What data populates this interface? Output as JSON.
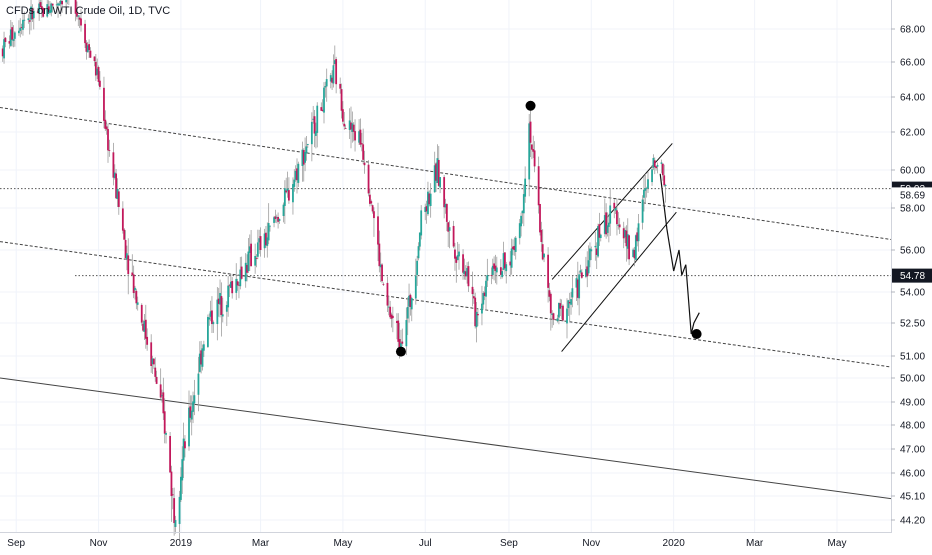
{
  "chart_data": {
    "type": "candlestick",
    "title": "CFDs on WTI Crude Oil, 1D, TVC",
    "x_ticks": [
      "Sep",
      "Nov",
      "2019",
      "Mar",
      "May",
      "Jul",
      "Sep",
      "Nov",
      "2020",
      "Mar",
      "May"
    ],
    "x_tick_dates": [
      "2018-09-01",
      "2018-11-01",
      "2019-01-01",
      "2019-03-01",
      "2019-05-01",
      "2019-07-01",
      "2019-09-01",
      "2019-11-01",
      "2020-01-01",
      "2020-03-01",
      "2020-05-01"
    ],
    "y_ticks": [
      "68.00",
      "66.00",
      "64.00",
      "62.00",
      "60.00",
      "58.00",
      "56.00",
      "54.00",
      "52.50",
      "51.00",
      "50.00",
      "49.00",
      "48.00",
      "47.00",
      "46.00",
      "45.10",
      "44.20"
    ],
    "y_tick_values": [
      68.0,
      66.0,
      64.0,
      62.0,
      60.0,
      58.0,
      56.0,
      54.0,
      52.5,
      51.0,
      50.0,
      49.0,
      48.0,
      47.0,
      46.0,
      45.1,
      44.2
    ],
    "price_labels": [
      {
        "text": "59.02",
        "value": 59.02,
        "style": "dark"
      },
      {
        "text": "58.69",
        "value": 58.69,
        "style": "light"
      },
      {
        "text": "54.78",
        "value": 54.78,
        "style": "dark"
      }
    ],
    "horizontal_lines": [
      59.02,
      54.78
    ],
    "x_range": [
      "2018-08-20",
      "2020-06-10"
    ],
    "colors": {
      "up": "#26a69a",
      "down": "#c2185b",
      "wick": "#9e9e9e",
      "annotation": "#000000"
    },
    "price_path": [
      [
        "2018-08-22",
        66.8
      ],
      [
        "2018-09-05",
        68.6
      ],
      [
        "2018-09-20",
        69.0
      ],
      [
        "2018-10-03",
        69.8
      ],
      [
        "2018-10-12",
        70.5
      ],
      [
        "2018-10-22",
        67.5
      ],
      [
        "2018-11-01",
        65.0
      ],
      [
        "2018-11-10",
        60.5
      ],
      [
        "2018-11-20",
        56.5
      ],
      [
        "2018-11-30",
        53.5
      ],
      [
        "2018-12-10",
        51.0
      ],
      [
        "2018-12-20",
        48.0
      ],
      [
        "2018-12-27",
        44.5
      ],
      [
        "2019-01-05",
        47.5
      ],
      [
        "2019-01-20",
        52.5
      ],
      [
        "2019-02-05",
        54.0
      ],
      [
        "2019-02-20",
        55.5
      ],
      [
        "2019-03-05",
        56.5
      ],
      [
        "2019-03-20",
        58.5
      ],
      [
        "2019-04-05",
        61.5
      ],
      [
        "2019-04-15",
        63.5
      ],
      [
        "2019-04-25",
        65.5
      ],
      [
        "2019-05-03",
        62.5
      ],
      [
        "2019-05-15",
        61.5
      ],
      [
        "2019-05-22",
        58.5
      ],
      [
        "2019-06-01",
        53.5
      ],
      [
        "2019-06-12",
        51.8
      ],
      [
        "2019-06-20",
        53.5
      ],
      [
        "2019-06-28",
        57.5
      ],
      [
        "2019-07-10",
        60.0
      ],
      [
        "2019-07-20",
        56.5
      ],
      [
        "2019-08-01",
        55.0
      ],
      [
        "2019-08-07",
        52.8
      ],
      [
        "2019-08-20",
        55.5
      ],
      [
        "2019-08-30",
        55.0
      ],
      [
        "2019-09-10",
        57.5
      ],
      [
        "2019-09-16",
        62.5
      ],
      [
        "2019-09-25",
        56.5
      ],
      [
        "2019-10-03",
        52.5
      ],
      [
        "2019-10-10",
        53.0
      ],
      [
        "2019-10-20",
        54.0
      ],
      [
        "2019-10-30",
        55.5
      ],
      [
        "2019-11-08",
        57.0
      ],
      [
        "2019-11-20",
        57.8
      ],
      [
        "2019-12-01",
        55.5
      ],
      [
        "2019-12-10",
        58.5
      ],
      [
        "2019-12-19",
        60.8
      ],
      [
        "2019-12-27",
        59.2
      ]
    ],
    "annotations": {
      "trendlines": [
        {
          "name": "upper-descending-trendline",
          "style": "dashed",
          "points": [
            [
              "2018-08-20",
              63.4
            ],
            [
              "2020-06-10",
              56.5
            ]
          ]
        },
        {
          "name": "middle-descending-trendline",
          "style": "dashed",
          "points": [
            [
              "2018-08-20",
              56.4
            ],
            [
              "2020-06-10",
              50.5
            ]
          ]
        },
        {
          "name": "lower-descending-trendline",
          "style": "solid",
          "points": [
            [
              "2018-08-20",
              50.0
            ],
            [
              "2020-06-10",
              45.0
            ]
          ]
        },
        {
          "name": "channel-upper-line",
          "style": "solid",
          "points": [
            [
              "2019-10-03",
              54.6
            ],
            [
              "2019-12-31",
              61.4
            ]
          ]
        },
        {
          "name": "channel-lower-line",
          "style": "solid",
          "points": [
            [
              "2019-10-10",
              51.2
            ],
            [
              "2020-01-03",
              57.8
            ]
          ]
        }
      ],
      "projection_path": [
        [
          "2019-12-22",
          59.8
        ],
        [
          "2019-12-27",
          57.0
        ],
        [
          "2020-01-01",
          55.0
        ],
        [
          "2020-01-05",
          56.0
        ],
        [
          "2020-01-07",
          54.8
        ],
        [
          "2020-01-10",
          55.3
        ],
        [
          "2020-01-14",
          52.0
        ],
        [
          "2020-01-16",
          52.5
        ],
        [
          "2020-01-20",
          53.0
        ]
      ],
      "dots": [
        {
          "name": "swing-high-dot",
          "point": [
            "2019-09-17",
            63.5
          ]
        },
        {
          "name": "swing-low-dot",
          "point": [
            "2019-06-13",
            51.2
          ]
        },
        {
          "name": "target-dot",
          "point": [
            "2020-01-18",
            52.0
          ]
        }
      ]
    }
  }
}
